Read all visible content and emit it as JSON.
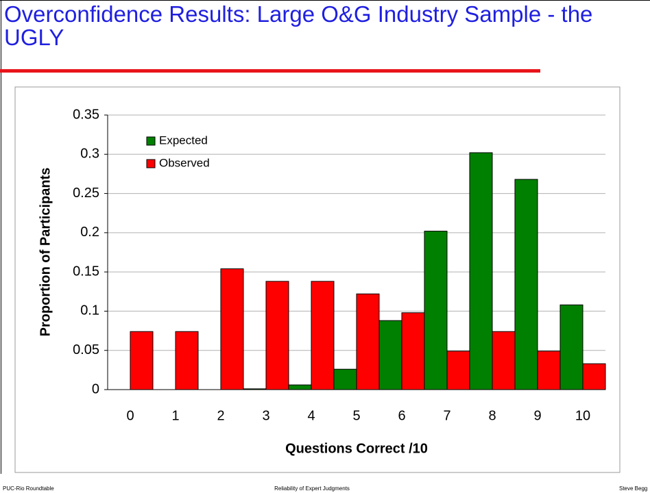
{
  "slide": {
    "title": "Overconfidence Results: Large O&G Industry Sample - the UGLY",
    "footer": {
      "left": "PUC-Rio Roundtable",
      "center": "Reliability of Expert Judgments",
      "right": "Steve Begg"
    }
  },
  "chart_data": {
    "type": "bar",
    "categories": [
      "0",
      "1",
      "2",
      "3",
      "4",
      "5",
      "6",
      "7",
      "8",
      "9",
      "10"
    ],
    "series": [
      {
        "name": "Expected",
        "color": "#008000",
        "values": [
          0,
          0,
          0,
          0.001,
          0.006,
          0.026,
          0.088,
          0.202,
          0.302,
          0.268,
          0.108
        ]
      },
      {
        "name": "Observed",
        "color": "#ff0000",
        "values": [
          0.074,
          0.074,
          0.154,
          0.138,
          0.138,
          0.122,
          0.098,
          0.049,
          0.074,
          0.049,
          0.033
        ]
      }
    ],
    "x_label": "Questions Correct /10",
    "y_label": "Proportion of Participants",
    "ylim": [
      0,
      0.35
    ],
    "yticks": [
      0,
      0.05,
      0.1,
      0.15,
      0.2,
      0.25,
      0.3,
      0.35
    ],
    "grid": true,
    "legend": "top-left"
  }
}
